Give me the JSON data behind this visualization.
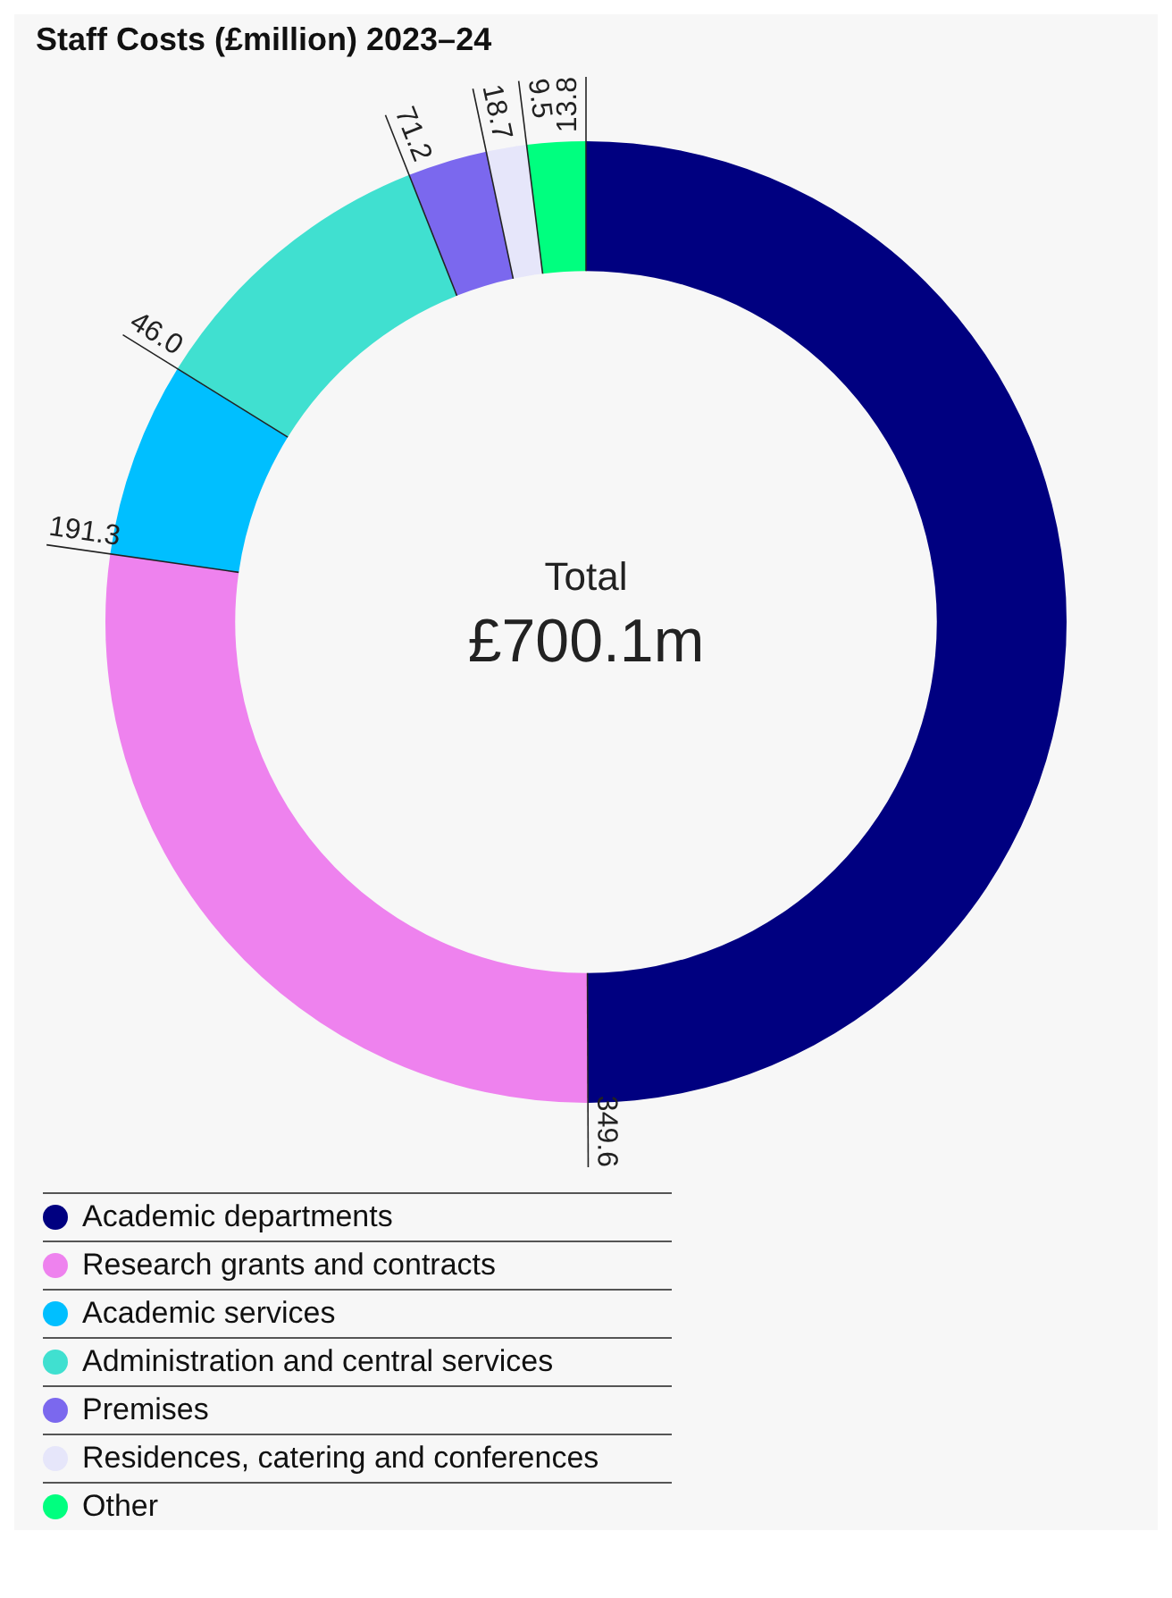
{
  "chart_data": {
    "type": "donut",
    "title": "Staff Costs (£million) 2023–24",
    "categories": [
      "Academic departments",
      "Research grants and contracts",
      "Academic services",
      "Administration and central services",
      "Premises",
      "Residences, catering and conferences",
      "Other"
    ],
    "values": [
      349.6,
      191.3,
      46.0,
      71.2,
      18.7,
      9.5,
      13.8
    ],
    "value_labels": [
      "349.6",
      "191.3",
      "46.0",
      "71.2",
      "18.7",
      "9.5",
      "13.8"
    ],
    "colors": [
      "#000080",
      "#ee82ee",
      "#00bfff",
      "#40e0d0",
      "#7b68ee",
      "#e6e6fa",
      "#00ff7f"
    ],
    "annotations": [
      "Total",
      "£700.1m"
    ],
    "legend": "bottom"
  }
}
